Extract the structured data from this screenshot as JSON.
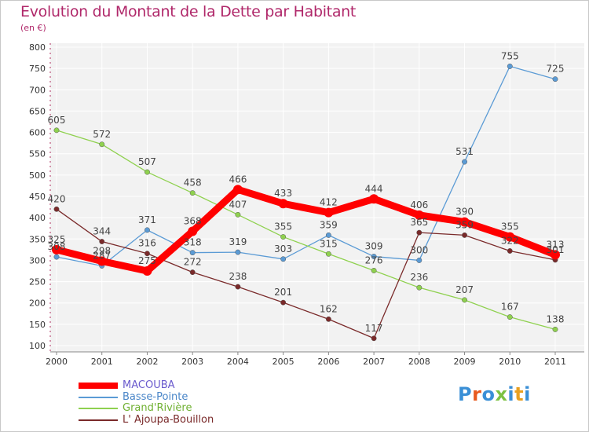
{
  "header": {
    "title": "Evolution du Montant de la Dette par Habitant",
    "unit": "(en €)"
  },
  "brand": {
    "text": "Proxiti",
    "letter_colors": [
      "#3a8fd6",
      "#e85a1e",
      "#3a8fd6",
      "#7cc242",
      "#3a8fd6",
      "#e8a020",
      "#3a8fd6"
    ]
  },
  "chart_data": {
    "type": "line",
    "x": [
      "2000",
      "2001",
      "2002",
      "2003",
      "2004",
      "2005",
      "2006",
      "2007",
      "2008",
      "2009",
      "2010",
      "2011"
    ],
    "ylim": [
      100,
      800
    ],
    "yticks": [
      "100",
      "150",
      "200",
      "250",
      "300",
      "350",
      "400",
      "450",
      "500",
      "550",
      "600",
      "650",
      "700",
      "750",
      "800"
    ],
    "grid": true,
    "legend_position": "bottom-left",
    "series": [
      {
        "name": "MACOUBA",
        "color": "#ff0000",
        "values": [
          325,
          298,
          275,
          368,
          466,
          433,
          412,
          444,
          406,
          390,
          355,
          313
        ],
        "labels": [
          "325",
          "298",
          "275",
          "368",
          "466",
          "433",
          "412",
          "444",
          "406",
          "390",
          "355",
          "313"
        ]
      },
      {
        "name": "Basse-Pointe",
        "color": "#5b9bd5",
        "values": [
          308,
          287,
          371,
          318,
          319,
          303,
          359,
          309,
          300,
          531,
          755,
          725
        ],
        "labels": [
          "308",
          "287",
          "371",
          "318",
          "319",
          "303",
          "359",
          "309",
          "300",
          "531",
          "755",
          "725"
        ]
      },
      {
        "name": "Grand'Rivière",
        "color": "#8fd14f",
        "values": [
          605,
          572,
          507,
          458,
          407,
          355,
          315,
          276,
          236,
          207,
          167,
          138
        ],
        "labels": [
          "605",
          "572",
          "507",
          "458",
          "407",
          "355",
          "315",
          "276",
          "236",
          "207",
          "167",
          "138"
        ]
      },
      {
        "name": "L' Ajoupa-Bouillon",
        "color": "#7a2a2a",
        "values": [
          420,
          344,
          316,
          272,
          238,
          201,
          162,
          117,
          365,
          359,
          322,
          301
        ],
        "labels": [
          "420",
          "344",
          "316",
          "272",
          "238",
          "201",
          "162",
          "117",
          "365",
          "359",
          "322",
          "301"
        ]
      }
    ]
  }
}
